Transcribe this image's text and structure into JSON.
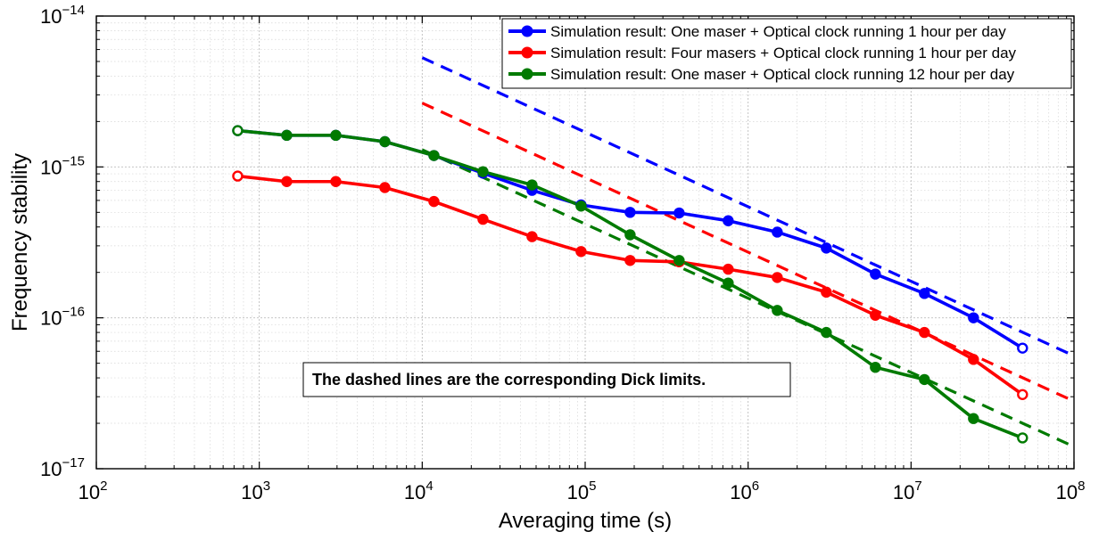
{
  "chart_data": {
    "type": "line",
    "xlabel": "Averaging time (s)",
    "ylabel": "Frequency stability",
    "xscale": "log",
    "yscale": "log",
    "xlim": [
      100,
      100000000
    ],
    "ylim": [
      1e-17,
      1e-14
    ],
    "grid": true,
    "legend_position": "top-right",
    "x_ticks": [
      {
        "value": 100,
        "base": "10",
        "exp": "2"
      },
      {
        "value": 1000,
        "base": "10",
        "exp": "3"
      },
      {
        "value": 10000,
        "base": "10",
        "exp": "4"
      },
      {
        "value": 100000,
        "base": "10",
        "exp": "5"
      },
      {
        "value": 1000000,
        "base": "10",
        "exp": "6"
      },
      {
        "value": 10000000,
        "base": "10",
        "exp": "7"
      },
      {
        "value": 100000000,
        "base": "10",
        "exp": "8"
      }
    ],
    "y_ticks": [
      {
        "value": 1e-17,
        "base": "10",
        "exp": "−17"
      },
      {
        "value": 1e-16,
        "base": "10",
        "exp": "−16"
      },
      {
        "value": 1e-15,
        "base": "10",
        "exp": "−15"
      },
      {
        "value": 1e-14,
        "base": "10",
        "exp": "−14"
      }
    ],
    "x": [
      737,
      1474,
      2949,
      5898,
      11796,
      23593,
      47186,
      94372,
      188744,
      377487,
      754975,
      1509949,
      3019898,
      6039797,
      12079595,
      24159191,
      48318382
    ],
    "series": [
      {
        "name": "Simulation result: One maser + Optical clock running 1 hour per day",
        "color": "#0000ff",
        "values": [
          1.74e-15,
          1.62e-15,
          1.62e-15,
          1.47e-15,
          1.19e-15,
          9.1e-16,
          7e-16,
          5.6e-16,
          5e-16,
          4.95e-16,
          4.4e-16,
          3.7e-16,
          2.9e-16,
          1.95e-16,
          1.45e-16,
          1e-16,
          6.3e-17
        ],
        "dick_limit": {
          "x": [
            10000,
            100000000
          ],
          "y": [
            5.3e-15,
            5.6e-17
          ]
        }
      },
      {
        "name": "Simulation result: Four masers + Optical clock running 1 hour per day",
        "color": "#ff0000",
        "values": [
          8.7e-16,
          8e-16,
          8e-16,
          7.3e-16,
          5.9e-16,
          4.5e-16,
          3.45e-16,
          2.75e-16,
          2.4e-16,
          2.35e-16,
          2.1e-16,
          1.85e-16,
          1.48e-16,
          1.04e-16,
          8e-17,
          5.3e-17,
          3.1e-17
        ],
        "dick_limit": {
          "x": [
            10000,
            100000000
          ],
          "y": [
            2.65e-15,
            2.8e-17
          ]
        }
      },
      {
        "name": "Simulation result: One maser + Optical clock running 12 hour per day",
        "color": "#007a00",
        "values": [
          1.74e-15,
          1.62e-15,
          1.62e-15,
          1.47e-15,
          1.19e-15,
          9.3e-16,
          7.6e-16,
          5.5e-16,
          3.55e-16,
          2.4e-16,
          1.7e-16,
          1.12e-16,
          8e-17,
          4.7e-17,
          3.9e-17,
          2.15e-17,
          1.6e-17
        ],
        "dick_limit": {
          "x": [
            10000,
            100000000
          ],
          "y": [
            1.3e-15,
            1.4e-17
          ]
        }
      }
    ],
    "annotation": "The dashed lines are the corresponding Dick limits."
  }
}
